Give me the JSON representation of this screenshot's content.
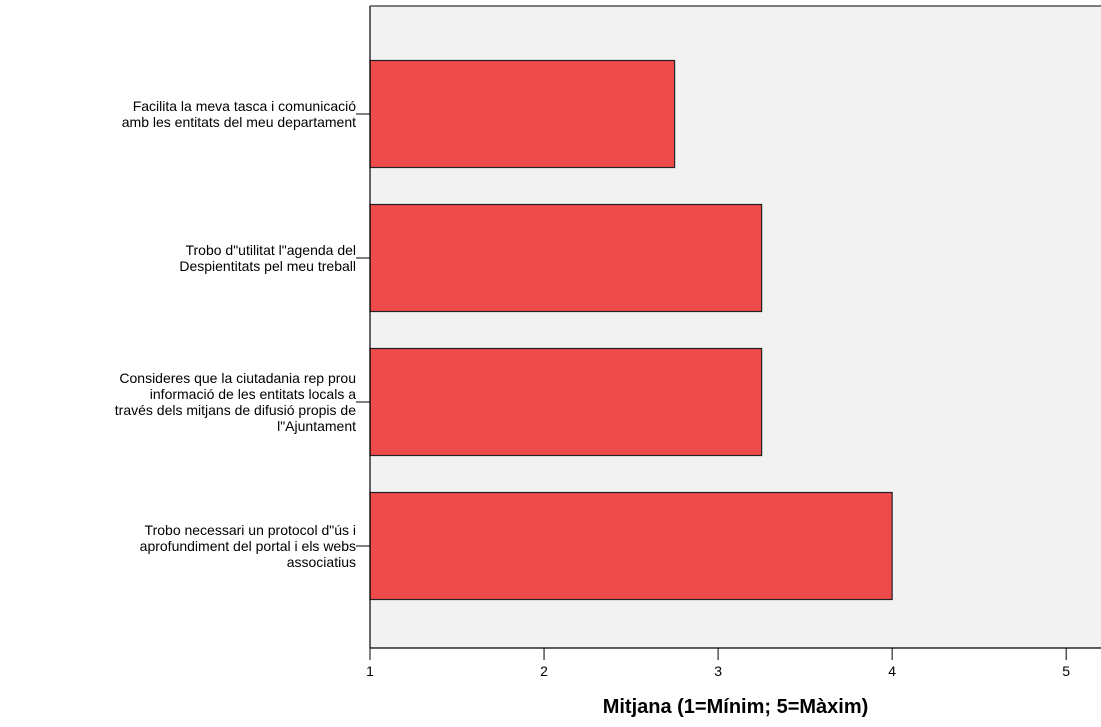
{
  "chart_data": {
    "type": "bar",
    "orientation": "horizontal",
    "categories": [
      [
        "Facilita la meva tasca i comunicació",
        "amb les entitats del meu departament"
      ],
      [
        "Trobo d\"utilitat l\"agenda del",
        "Despientitats pel meu treball"
      ],
      [
        "Consideres que la ciutadania rep prou",
        "informació de les entitats locals a",
        "través dels mitjans de difusió propis de",
        "l\"Ajuntament"
      ],
      [
        "Trobo necessari un protocol d\"ús i",
        "aprofundiment del portal i els webs",
        "associatius"
      ]
    ],
    "values": [
      2.75,
      3.25,
      3.25,
      4.0
    ],
    "xlabel": "Mitjana (1=Mínim; 5=Màxim)",
    "xlim": [
      1,
      5.2
    ],
    "xticks": [
      "1",
      "2",
      "3",
      "4",
      "5"
    ],
    "grid": false,
    "legend": "none",
    "colors": {
      "bar": "#ef4b4b",
      "plot_bg": "#f2f2f2",
      "axis": "#000000"
    }
  }
}
